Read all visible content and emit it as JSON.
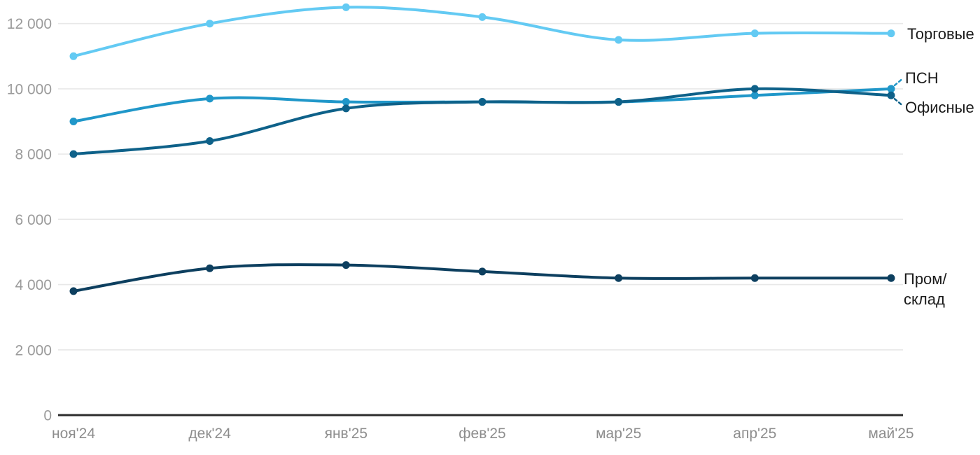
{
  "chart_data": {
    "type": "line",
    "title": "",
    "xlabel": "",
    "ylabel": "",
    "x_categories": [
      "ноя'24",
      "дек'24",
      "янв'25",
      "фев'25",
      "мар'25",
      "апр'25",
      "май'25"
    ],
    "y_ticks": [
      {
        "value": 12000,
        "label": "12 000"
      },
      {
        "value": 10000,
        "label": "10 000"
      },
      {
        "value": 8000,
        "label": "8 000"
      },
      {
        "value": 6000,
        "label": "6 000"
      },
      {
        "value": 4000,
        "label": "4 000"
      },
      {
        "value": 2000,
        "label": "2 000"
      },
      {
        "value": 0,
        "label": "0"
      }
    ],
    "ylim": [
      0,
      12500
    ],
    "grid": "horizontal-gridlines-on",
    "legend_position": "right-end-labels",
    "series": [
      {
        "name": "Торговые",
        "color": "#63caf3",
        "values": [
          11000,
          12000,
          12500,
          12200,
          11500,
          11700,
          11700
        ],
        "leader": "none"
      },
      {
        "name": "ПСН",
        "color": "#2097c9",
        "values": [
          9000,
          9700,
          9600,
          9600,
          9600,
          9800,
          10000
        ],
        "leader": "up"
      },
      {
        "name": "Офисные",
        "color": "#0e6189",
        "values": [
          8000,
          8400,
          9400,
          9600,
          9600,
          10000,
          9800
        ],
        "leader": "down"
      },
      {
        "name": "Пром/склад",
        "color": "#0d3f5f",
        "values": [
          3800,
          4500,
          4600,
          4400,
          4200,
          4200,
          4200
        ],
        "leader": "none"
      }
    ]
  },
  "style_colors": {
    "gridline": "#e8e8e8",
    "axis_line": "#2d2d2d",
    "y_tick_text": "#9b9b9b",
    "x_tick_text": "#8d8d8d",
    "series_label_text": "#1b1b1b"
  }
}
